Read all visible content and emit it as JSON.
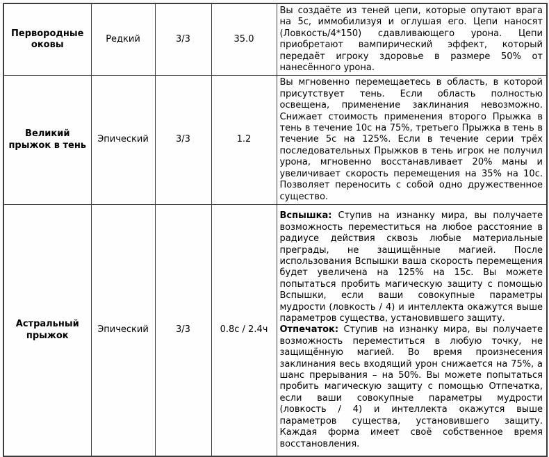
{
  "table": {
    "rows": [
      {
        "name": "Первородные оковы",
        "rarity": "Редкий",
        "charges": "3/3",
        "cooldown": "35.0",
        "paragraphs": [
          {
            "lead": "",
            "text": "Вы создаёте из теней цепи, которые опутают врага на 5с, иммобилизуя и оглушая его. Цепи наносят (Ловкость/4*150) сдавливающего урона. Цепи приобретают вампирический эффект, который передаёт игроку здоровье в размере 50% от нанесённого урона."
          }
        ]
      },
      {
        "name": "Великий прыжок в тень",
        "rarity": "Эпический",
        "charges": "3/3",
        "cooldown": "1.2",
        "paragraphs": [
          {
            "lead": "",
            "text": "Вы мгновенно перемещаетесь в область, в которой присутствует тень. Если область полностью освещена, применение заклинания невозможно. Снижает стоимость применения второго Прыжка в тень в течение 10с на 75%, третьего Прыжка в тень в течение 5с на 125%. Если в течение серии трёх последовательных Прыжков в тень игрок не получил урона, мгновенно восстанавливает 20% маны и увеличивает скорость перемещения на 35% на 10с. Позволяет переносить с собой одно дружественное существо."
          }
        ]
      },
      {
        "name": "Астральный прыжок",
        "rarity": "Эпический",
        "charges": "3/3",
        "cooldown": "0.8с / 2.4ч",
        "paragraphs": [
          {
            "lead": "Вспышка:",
            "text": "Ступив на изнанку мира, вы получаете возможность переместиться на любое расстояние в радиусе действия сквозь любые материальные преграды, не защищённые магией. После использования Вспышки ваша скорость перемещения будет увеличена на 125% на 15с. Вы можете попытаться пробить магическую защиту с помощью Вспышки, если ваши совокупные параметры мудрости (ловкость / 4) и интеллекта окажутся выше параметров существа, установившего защиту."
          },
          {
            "lead": "Отпечаток:",
            "text": "Ступив на изнанку мира, вы получаете возможность переместиться в любую точку, не защищённую магией. Во время произнесения заклинания весь входящий урон снижается на 75%, а шанс прерывания – на 50%. Вы можете попытаться пробить магическую защиту с помощью Отпечатка, если ваши совокупные параметры мудрости (ловкость / 4) и интеллекта окажутся выше параметров существа, установившего защиту. Каждая форма имеет своё собственное время восстановления."
          }
        ]
      }
    ]
  },
  "colors": {
    "border": "#3c3c3c",
    "background": "#fefefe",
    "text": "#000000"
  }
}
